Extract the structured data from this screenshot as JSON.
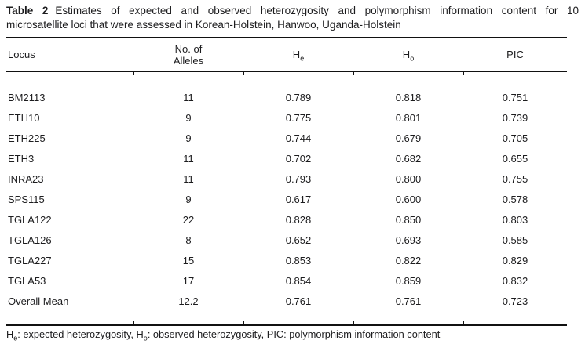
{
  "caption": {
    "label": "Table 2",
    "line1": "Estimates of expected and observed heterozygosity and polymorphism information content for 10",
    "line2": "microsatellite loci that were assessed in Korean-Holstein, Hanwoo, Uganda-Holstein"
  },
  "header": {
    "locus": "Locus",
    "alleles_line1": "No. of",
    "alleles_line2": "Alleles",
    "he_base": "H",
    "he_sub": "e",
    "ho_base": "H",
    "ho_sub": "o",
    "pic": "PIC"
  },
  "table": {
    "rows": [
      [
        "BM2113",
        "11",
        "0.789",
        "0.818",
        "0.751"
      ],
      [
        "ETH10",
        "9",
        "0.775",
        "0.801",
        "0.739"
      ],
      [
        "ETH225",
        "9",
        "0.744",
        "0.679",
        "0.705"
      ],
      [
        "ETH3",
        "11",
        "0.702",
        "0.682",
        "0.655"
      ],
      [
        "INRA23",
        "11",
        "0.793",
        "0.800",
        "0.755"
      ],
      [
        "SPS115",
        "9",
        "0.617",
        "0.600",
        "0.578"
      ],
      [
        "TGLA122",
        "22",
        "0.828",
        "0.850",
        "0.803"
      ],
      [
        "TGLA126",
        "8",
        "0.652",
        "0.693",
        "0.585"
      ],
      [
        "TGLA227",
        "15",
        "0.853",
        "0.822",
        "0.829"
      ],
      [
        "TGLA53",
        "17",
        "0.854",
        "0.859",
        "0.832"
      ],
      [
        "Overall Mean",
        "12.2",
        "0.761",
        "0.761",
        "0.723"
      ]
    ]
  },
  "footnote": {
    "p1": "H",
    "p1_sub": "e",
    "p2": ": expected heterozygosity, H",
    "p2_sub": "o",
    "p3": ": observed heterozygosity, PIC: polymorphism information content"
  },
  "colors": {
    "text": "#1c1c1e",
    "rule": "#111111",
    "background": "#ffffff"
  }
}
